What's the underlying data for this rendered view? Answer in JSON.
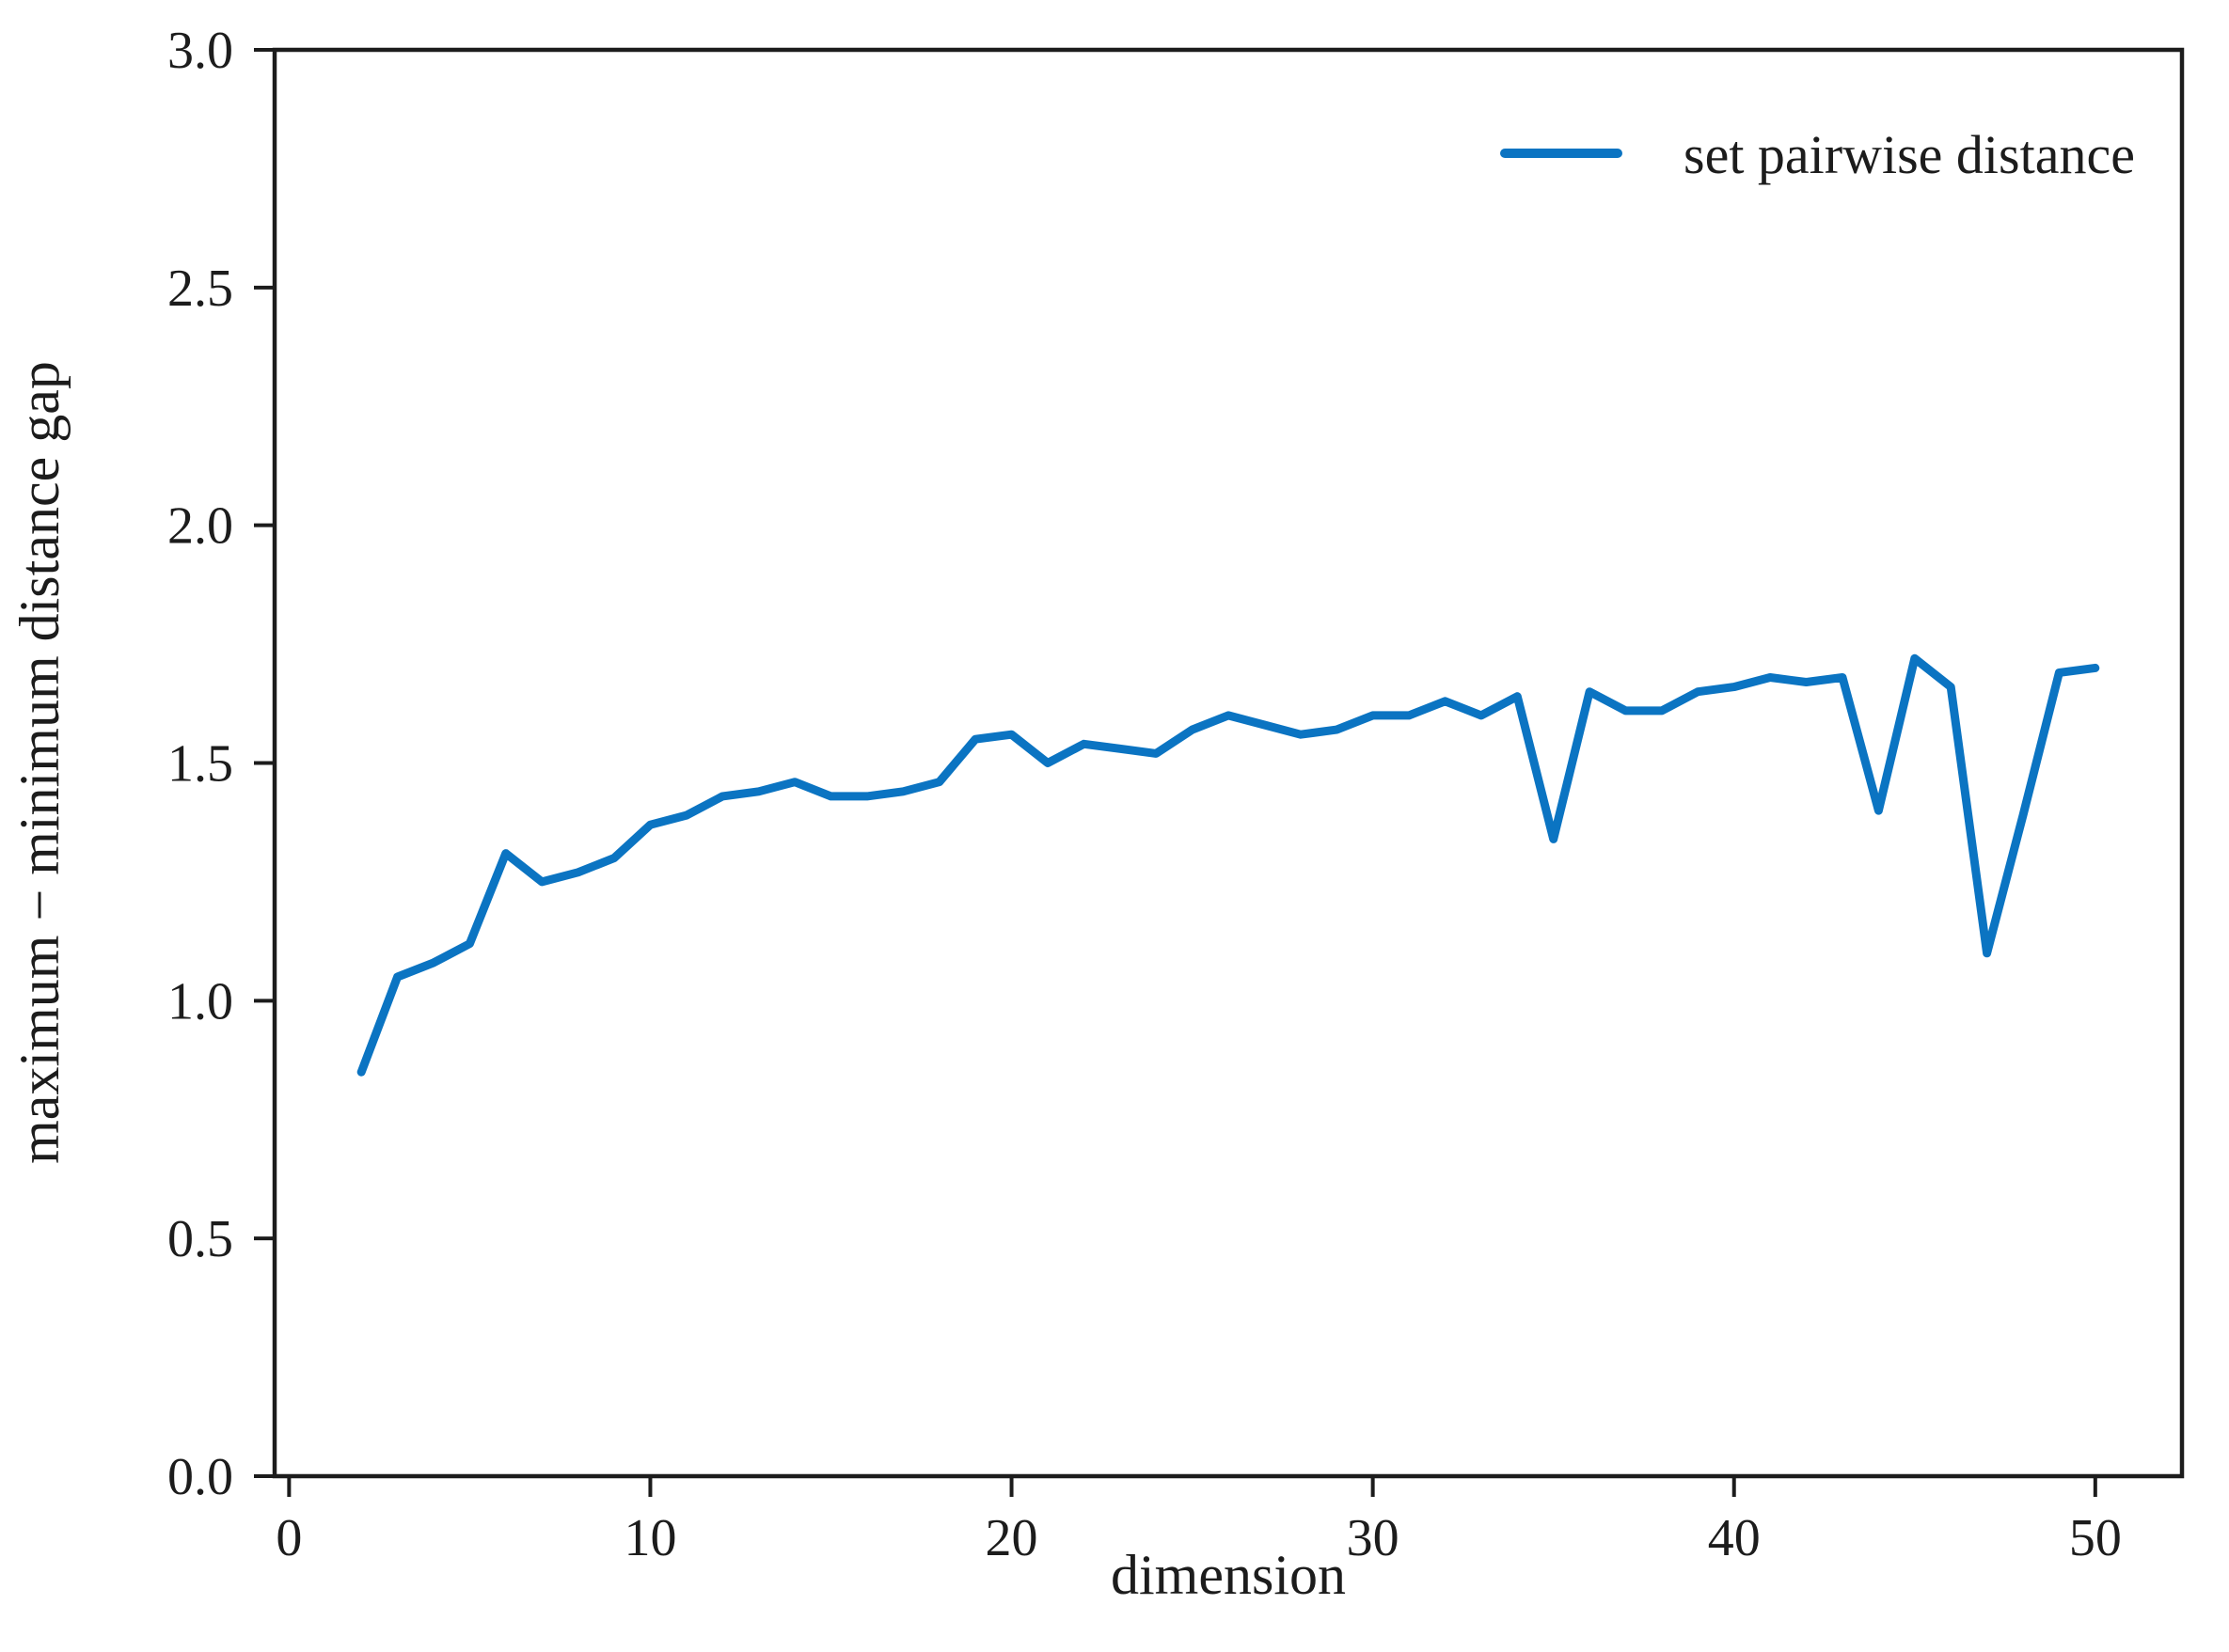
{
  "figure": {
    "background": "#ffffff",
    "axes_color": "#1c1c1c"
  },
  "legend": {
    "label": "set pairwise distance"
  },
  "chart_data": {
    "type": "line",
    "title": "",
    "xlabel": "dimension",
    "ylabel": "maximum − minimum distance gap",
    "xlim": [
      -0.4,
      52.4
    ],
    "ylim": [
      0,
      3.0
    ],
    "x_ticks": [
      0,
      10,
      20,
      30,
      40,
      50
    ],
    "y_ticks": [
      0.0,
      0.5,
      1.0,
      1.5,
      2.0,
      2.5,
      3.0
    ],
    "grid": false,
    "legend_position": "upper right",
    "series": [
      {
        "name": "set pairwise distance",
        "color": "#0b74c2",
        "x": [
          2,
          3,
          4,
          5,
          6,
          7,
          8,
          9,
          10,
          11,
          12,
          13,
          14,
          15,
          16,
          17,
          18,
          19,
          20,
          21,
          22,
          23,
          24,
          25,
          26,
          27,
          28,
          29,
          30,
          31,
          32,
          33,
          34,
          35,
          36,
          37,
          38,
          39,
          40,
          41,
          42,
          43,
          44,
          45,
          46,
          47,
          48,
          49,
          50
        ],
        "y": [
          0.85,
          1.05,
          1.08,
          1.12,
          1.31,
          1.25,
          1.27,
          1.3,
          1.37,
          1.39,
          1.43,
          1.44,
          1.46,
          1.43,
          1.43,
          1.44,
          1.46,
          1.55,
          1.56,
          1.5,
          1.54,
          1.53,
          1.52,
          1.57,
          1.6,
          1.58,
          1.56,
          1.57,
          1.6,
          1.6,
          1.63,
          1.6,
          1.64,
          1.34,
          1.65,
          1.61,
          1.61,
          1.65,
          1.66,
          1.68,
          1.67,
          1.68,
          1.4,
          1.72,
          1.66,
          1.1,
          1.39,
          1.69,
          1.7
        ]
      }
    ]
  }
}
